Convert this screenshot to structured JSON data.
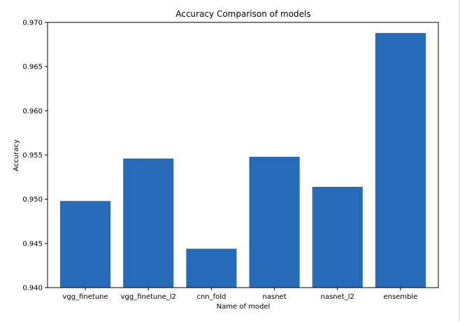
{
  "chart_data": {
    "type": "bar",
    "title": "Accuracy Comparison of models",
    "xlabel": "Name of model",
    "ylabel": "Accuracy",
    "categories": [
      "vgg_finetune",
      "vgg_finetune_l2",
      "cnn_fold",
      "nasnet",
      "nasnet_l2",
      "ensemble"
    ],
    "values": [
      0.9498,
      0.9546,
      0.9444,
      0.9548,
      0.9514,
      0.9688
    ],
    "ylim": [
      0.94,
      0.97
    ],
    "yticks": [
      "0.940",
      "0.945",
      "0.950",
      "0.955",
      "0.960",
      "0.965",
      "0.970"
    ],
    "bar_color": "#276bb8",
    "grid": false,
    "legend": "none"
  }
}
